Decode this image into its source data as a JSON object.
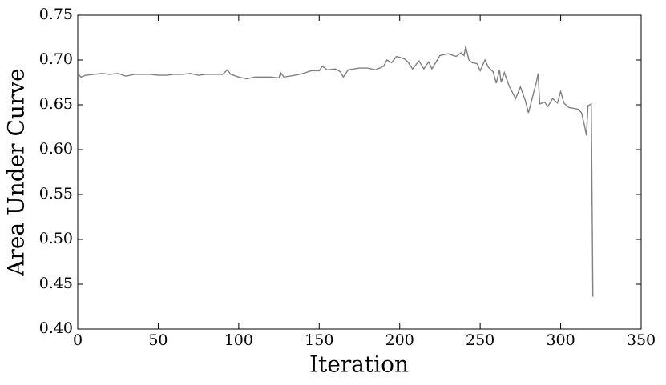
{
  "chart_data": {
    "type": "line",
    "xlabel": "Iteration",
    "ylabel": "Area Under Curve",
    "xlim": [
      0,
      350
    ],
    "xticks": [
      0,
      50,
      100,
      150,
      200,
      250,
      300,
      350
    ],
    "ylim": [
      0.4,
      0.75
    ],
    "yticks": [
      {
        "value": 0.4,
        "label": "0.40"
      },
      {
        "value": 0.45,
        "label": "0.45"
      },
      {
        "value": 0.5,
        "label": "0.50"
      },
      {
        "value": 0.55,
        "label": "0.55"
      },
      {
        "value": 0.6,
        "label": "0.60"
      },
      {
        "value": 0.65,
        "label": "0.65"
      },
      {
        "value": 0.7,
        "label": "0.70"
      },
      {
        "value": 0.75,
        "label": "0.75"
      }
    ],
    "grid": false,
    "series": [
      {
        "color": "#808080",
        "x": [
          0,
          2,
          5,
          10,
          15,
          20,
          25,
          30,
          35,
          40,
          45,
          50,
          55,
          60,
          65,
          70,
          75,
          80,
          85,
          90,
          93,
          95,
          100,
          105,
          110,
          115,
          120,
          125,
          126,
          128,
          135,
          140,
          145,
          150,
          152,
          155,
          160,
          163,
          165,
          168,
          175,
          180,
          185,
          190,
          192,
          195,
          198,
          200,
          203,
          205,
          208,
          212,
          215,
          218,
          220,
          225,
          230,
          235,
          238,
          240,
          241,
          243,
          245,
          248,
          250,
          253,
          255,
          258,
          260,
          262,
          263,
          265,
          268,
          270,
          272,
          275,
          278,
          280,
          282,
          285,
          286,
          287,
          290,
          292,
          295,
          298,
          300,
          302,
          305,
          308,
          311,
          313,
          315,
          316,
          317,
          319,
          320
        ],
        "values": [
          0.685,
          0.681,
          0.683,
          0.684,
          0.685,
          0.684,
          0.685,
          0.682,
          0.684,
          0.684,
          0.684,
          0.683,
          0.683,
          0.684,
          0.684,
          0.685,
          0.683,
          0.684,
          0.684,
          0.684,
          0.689,
          0.684,
          0.681,
          0.679,
          0.681,
          0.681,
          0.681,
          0.68,
          0.686,
          0.681,
          0.683,
          0.685,
          0.688,
          0.688,
          0.693,
          0.689,
          0.69,
          0.687,
          0.681,
          0.689,
          0.691,
          0.691,
          0.689,
          0.693,
          0.7,
          0.697,
          0.704,
          0.703,
          0.701,
          0.698,
          0.69,
          0.699,
          0.69,
          0.698,
          0.69,
          0.705,
          0.707,
          0.704,
          0.708,
          0.705,
          0.715,
          0.7,
          0.697,
          0.696,
          0.688,
          0.7,
          0.692,
          0.687,
          0.674,
          0.689,
          0.675,
          0.686,
          0.671,
          0.664,
          0.657,
          0.67,
          0.655,
          0.641,
          0.655,
          0.676,
          0.685,
          0.651,
          0.653,
          0.648,
          0.657,
          0.652,
          0.665,
          0.652,
          0.647,
          0.646,
          0.645,
          0.641,
          0.625,
          0.616,
          0.649,
          0.651,
          0.436
        ]
      }
    ]
  }
}
